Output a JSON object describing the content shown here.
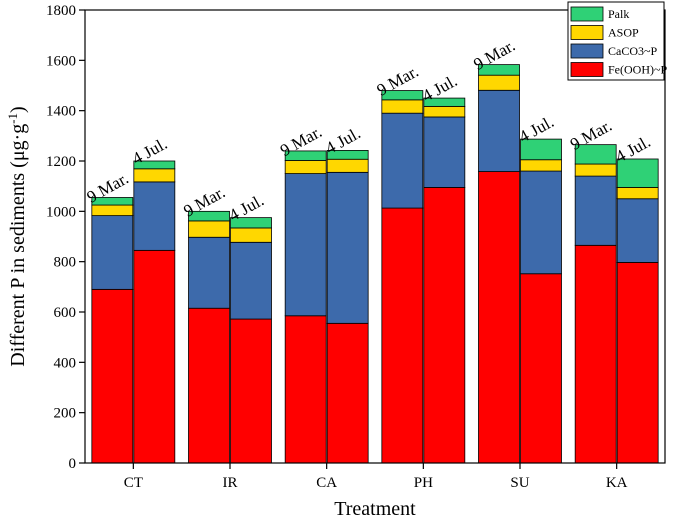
{
  "chart_data": {
    "type": "bar",
    "stacked": true,
    "categories": [
      "CT",
      "IR",
      "CA",
      "PH",
      "SU",
      "KA"
    ],
    "bar_dates": [
      "9 Mar.",
      "4 Jul."
    ],
    "xlabel": "Treatment",
    "ylabel_main": "Different P in sediments (μg·g",
    "ylabel_sup": "-1",
    "ylabel_end": ")",
    "ylim": [
      0,
      1800
    ],
    "yticks": [
      0,
      200,
      400,
      600,
      800,
      1000,
      1200,
      1400,
      1600,
      1800
    ],
    "legend_position": "top-right",
    "series": [
      {
        "name": "Fe(OOH)~P",
        "color": "#ff0000",
        "values": [
          [
            690,
            845
          ],
          [
            615,
            572
          ],
          [
            585,
            555
          ],
          [
            1013,
            1095
          ],
          [
            1158,
            752
          ],
          [
            865,
            797
          ]
        ]
      },
      {
        "name": "CaCO3~P",
        "color": "#3d6aab",
        "values": [
          [
            293,
            272
          ],
          [
            282,
            305
          ],
          [
            565,
            600
          ],
          [
            377,
            280
          ],
          [
            323,
            408
          ],
          [
            275,
            253
          ]
        ]
      },
      {
        "name": "ASOP",
        "color": "#ffd700",
        "values": [
          [
            42,
            52
          ],
          [
            65,
            57
          ],
          [
            52,
            52
          ],
          [
            53,
            42
          ],
          [
            60,
            45
          ],
          [
            48,
            45
          ]
        ]
      },
      {
        "name": "Palk",
        "color": "#2fd176",
        "values": [
          [
            30,
            31
          ],
          [
            38,
            41
          ],
          [
            38,
            35
          ],
          [
            37,
            33
          ],
          [
            42,
            82
          ],
          [
            77,
            113
          ]
        ]
      }
    ],
    "legend_order": [
      "Palk",
      "ASOP",
      "CaCO3~P",
      "Fe(OOH)~P"
    ]
  }
}
